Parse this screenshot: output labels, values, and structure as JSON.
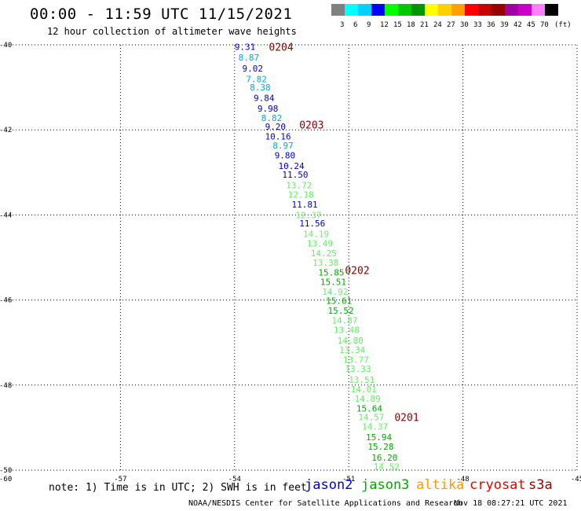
{
  "header": {
    "title": "00:00 - 11:59 UTC 11/15/2021",
    "subtitle": "12 hour collection of altimeter wave heights"
  },
  "legend": {
    "colors": [
      "#808080",
      "#00ffff",
      "#00d0ff",
      "#0000ff",
      "#00ff00",
      "#00c800",
      "#009600",
      "#ffff00",
      "#ffd000",
      "#ffa000",
      "#ff0000",
      "#c80000",
      "#960000",
      "#a000a0",
      "#c800c8",
      "#ff80ff",
      "#000000"
    ],
    "ticks": [
      "3",
      "6",
      "9",
      "12",
      "15",
      "18",
      "21",
      "24",
      "27",
      "30",
      "33",
      "36",
      "39",
      "42",
      "45",
      "70",
      "(ft)"
    ]
  },
  "chart_data": {
    "type": "scatter",
    "xlabel": "",
    "ylabel": "",
    "xlim": [
      -60,
      -45
    ],
    "ylim": [
      -50,
      -40
    ],
    "x_ticks": [
      "-57",
      "-54",
      "-51",
      "-48",
      "-45"
    ],
    "y_ticks": [
      "-40",
      "-42",
      "-44",
      "-46",
      "-48",
      "-50"
    ],
    "corner_tick": "-60",
    "grid": true,
    "points": [
      {
        "lon": -54.0,
        "lat": -40.05,
        "v": "9.31",
        "c": "#0000cc"
      },
      {
        "lon": -53.9,
        "lat": -40.3,
        "v": "8.87",
        "c": "#00aadd"
      },
      {
        "lon": -53.8,
        "lat": -40.55,
        "v": "9.02",
        "c": "#0000cc"
      },
      {
        "lon": -53.7,
        "lat": -40.8,
        "v": "7.82",
        "c": "#00aadd"
      },
      {
        "lon": -53.6,
        "lat": -41.0,
        "v": "8.38",
        "c": "#00aadd"
      },
      {
        "lon": -53.5,
        "lat": -41.25,
        "v": "9.84",
        "c": "#0000cc"
      },
      {
        "lon": -53.4,
        "lat": -41.5,
        "v": "9.98",
        "c": "#0000cc"
      },
      {
        "lon": -53.3,
        "lat": -41.72,
        "v": "8.82",
        "c": "#00aadd"
      },
      {
        "lon": -53.2,
        "lat": -41.92,
        "v": "9.20",
        "c": "#0000cc"
      },
      {
        "lon": -53.2,
        "lat": -42.15,
        "v": "10.16",
        "c": "#0000cc"
      },
      {
        "lon": -53.0,
        "lat": -42.37,
        "v": "8.97",
        "c": "#00aadd"
      },
      {
        "lon": -52.95,
        "lat": -42.6,
        "v": "9.80",
        "c": "#0000cc"
      },
      {
        "lon": -52.85,
        "lat": -42.85,
        "v": "10.24",
        "c": "#0000cc"
      },
      {
        "lon": -52.75,
        "lat": -43.05,
        "v": "11.50",
        "c": "#0000cc"
      },
      {
        "lon": -52.65,
        "lat": -43.3,
        "v": "13.72",
        "c": "#66ee66"
      },
      {
        "lon": -52.6,
        "lat": -43.52,
        "v": "12.18",
        "c": "#66ee66"
      },
      {
        "lon": -52.5,
        "lat": -43.75,
        "v": "11.81",
        "c": "#0000cc"
      },
      {
        "lon": -52.4,
        "lat": -44.0,
        "v": "12.37",
        "c": "#66ee66"
      },
      {
        "lon": -52.3,
        "lat": -44.2,
        "v": "11.56",
        "c": "#0000cc"
      },
      {
        "lon": -52.2,
        "lat": -44.45,
        "v": "14.19",
        "c": "#66ee66"
      },
      {
        "lon": -52.1,
        "lat": -44.67,
        "v": "13.49",
        "c": "#66ee66"
      },
      {
        "lon": -52.0,
        "lat": -44.9,
        "v": "14.25",
        "c": "#66ee66"
      },
      {
        "lon": -51.95,
        "lat": -45.12,
        "v": "13.38",
        "c": "#66ee66"
      },
      {
        "lon": -51.8,
        "lat": -45.35,
        "v": "15.85",
        "c": "#00aa00"
      },
      {
        "lon": -51.75,
        "lat": -45.57,
        "v": "15.51",
        "c": "#00aa00"
      },
      {
        "lon": -51.7,
        "lat": -45.8,
        "v": "14.92",
        "c": "#66ee66"
      },
      {
        "lon": -51.6,
        "lat": -46.02,
        "v": "15.61",
        "c": "#00aa00"
      },
      {
        "lon": -51.55,
        "lat": -46.25,
        "v": "15.52",
        "c": "#00aa00"
      },
      {
        "lon": -51.45,
        "lat": -46.48,
        "v": "14.87",
        "c": "#66ee66"
      },
      {
        "lon": -51.4,
        "lat": -46.7,
        "v": "13.48",
        "c": "#66ee66"
      },
      {
        "lon": -51.3,
        "lat": -46.95,
        "v": "14.80",
        "c": "#66ee66"
      },
      {
        "lon": -51.25,
        "lat": -47.17,
        "v": "13.34",
        "c": "#66ee66"
      },
      {
        "lon": -51.15,
        "lat": -47.4,
        "v": "13.77",
        "c": "#66ee66"
      },
      {
        "lon": -51.1,
        "lat": -47.62,
        "v": "13.33",
        "c": "#66ee66"
      },
      {
        "lon": -51.0,
        "lat": -47.87,
        "v": "13.51",
        "c": "#66ee66"
      },
      {
        "lon": -50.95,
        "lat": -48.1,
        "v": "14.01",
        "c": "#66ee66"
      },
      {
        "lon": -50.85,
        "lat": -48.32,
        "v": "14.89",
        "c": "#66ee66"
      },
      {
        "lon": -50.8,
        "lat": -48.55,
        "v": "15.64",
        "c": "#00aa00"
      },
      {
        "lon": -50.75,
        "lat": -48.75,
        "v": "14.57",
        "c": "#66ee66"
      },
      {
        "lon": -50.65,
        "lat": -48.97,
        "v": "14.37",
        "c": "#66ee66"
      },
      {
        "lon": -50.55,
        "lat": -49.22,
        "v": "15.94",
        "c": "#00aa00"
      },
      {
        "lon": -50.5,
        "lat": -49.45,
        "v": "15.28",
        "c": "#00aa00"
      },
      {
        "lon": -50.4,
        "lat": -49.7,
        "v": "16.20",
        "c": "#00aa00"
      },
      {
        "lon": -50.35,
        "lat": -49.92,
        "v": "14.52",
        "c": "#66ee66"
      }
    ],
    "time_labels": [
      {
        "lon": -53.1,
        "lat": -40.05,
        "t": "0204"
      },
      {
        "lon": -52.3,
        "lat": -41.88,
        "t": "0203"
      },
      {
        "lon": -51.1,
        "lat": -45.3,
        "t": "0202"
      },
      {
        "lon": -49.8,
        "lat": -48.75,
        "t": "0201"
      }
    ]
  },
  "footer": {
    "note": "note: 1) Time is in UTC; 2) SWH is in feet",
    "satellites": [
      {
        "name": "jason2",
        "color": "#0000dd"
      },
      {
        "name": "jason3",
        "color": "#00aa00"
      },
      {
        "name": "altika",
        "color": "#ff9900"
      },
      {
        "name": "cryosat",
        "color": "#ee0000"
      },
      {
        "name": "s3a",
        "color": "#990000"
      }
    ],
    "credit": "NOAA/NESDIS Center for Satellite Applications and Research",
    "timestamp": "Nov 18 08:27:21 UTC 2021"
  }
}
